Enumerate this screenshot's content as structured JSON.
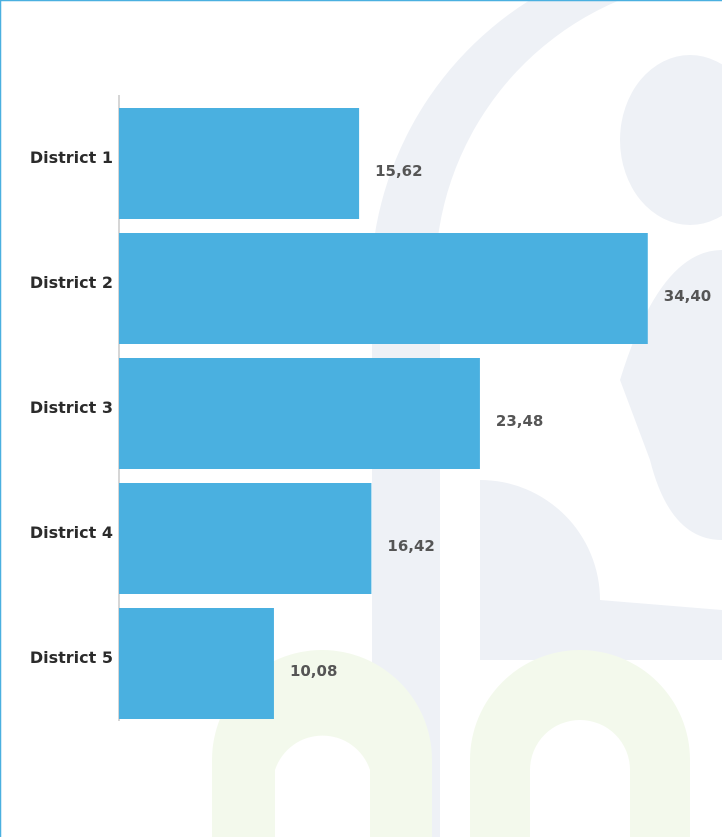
{
  "chart_data": {
    "type": "hbar",
    "categories": [
      "District 1",
      "District 2",
      "District 3",
      "District 4",
      "District 5"
    ],
    "values": [
      15.62,
      34.4,
      23.48,
      16.42,
      10.08
    ],
    "value_labels": [
      "15,62",
      "34,40",
      "23,48",
      "16,42",
      "10,08"
    ],
    "color": "#4ab0e0",
    "xlim": [
      0,
      35
    ]
  }
}
